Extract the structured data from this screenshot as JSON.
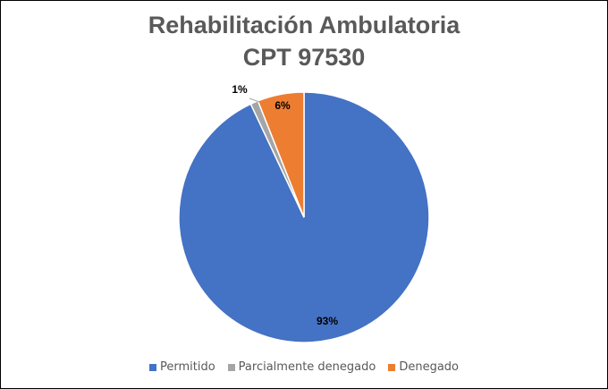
{
  "chart_data": {
    "type": "pie",
    "title": "Rehabilitación Ambulatoria",
    "subtitle": "CPT 97530",
    "slices": [
      {
        "name": "Permitido",
        "value": 93,
        "label": "93%",
        "color": "#4472C4"
      },
      {
        "name": "Parcialmente denegado",
        "value": 1,
        "label": "1%",
        "color": "#A5A5A5"
      },
      {
        "name": "Denegado",
        "value": 6,
        "label": "6%",
        "color": "#ED7D31"
      }
    ],
    "legend_position": "bottom"
  }
}
